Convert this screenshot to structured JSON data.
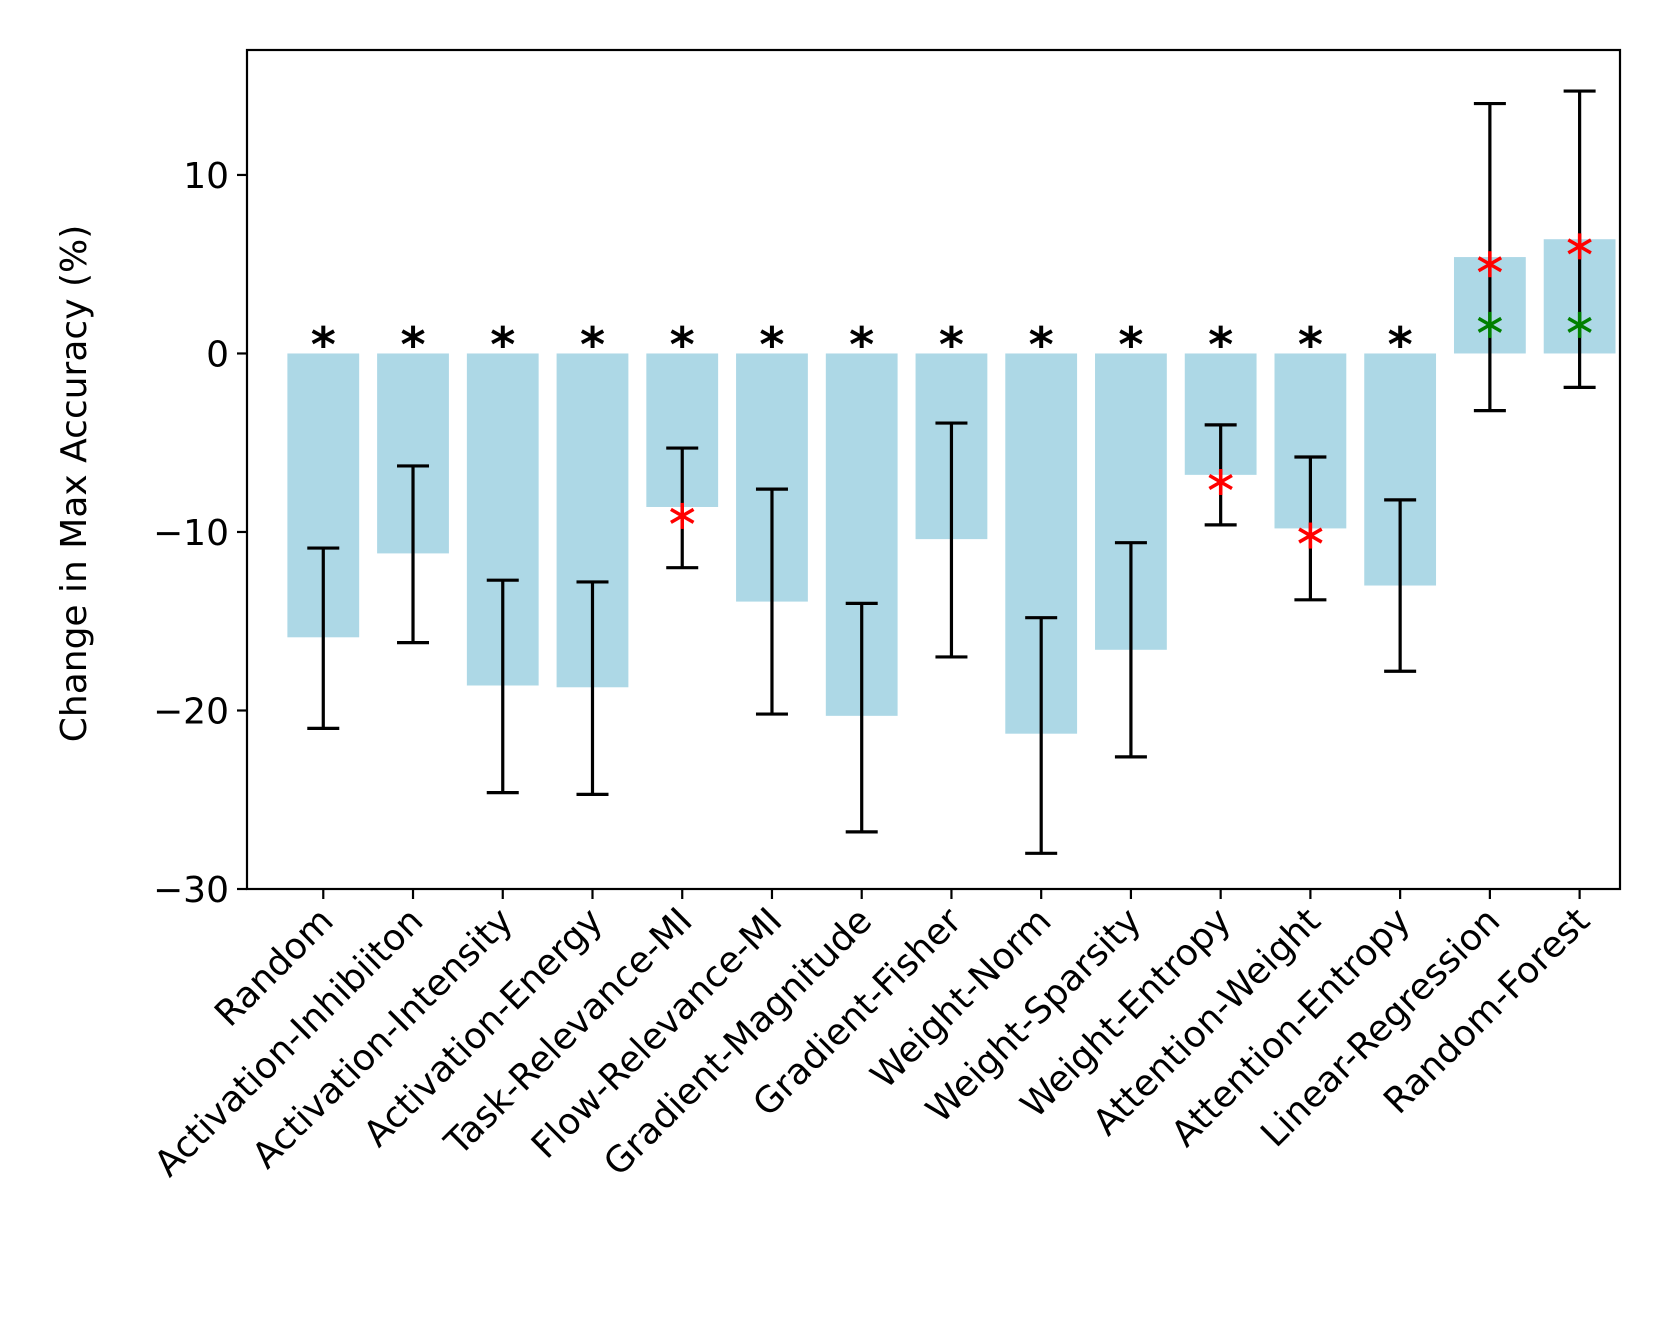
{
  "chart_data": {
    "type": "bar",
    "title": "",
    "xlabel": "",
    "ylabel": "Change in Max Accuracy (%)",
    "ylim": [
      -30,
      17
    ],
    "yticks": [
      10,
      0,
      -10,
      -20,
      -30
    ],
    "ytick_labels": [
      "10",
      "0",
      "−10",
      "−20",
      "−30"
    ],
    "categories": [
      "Random",
      "Activation-Inhibiiton",
      "Activation-Intensity",
      "Activation-Energy",
      "Task-Relevance-MI",
      "Flow-Relevance-MI",
      "Gradient-Magnitude",
      "Gradient-Fisher",
      "Weight-Norm",
      "Weight-Sparsity",
      "Weight-Entropy",
      "Attention-Weight",
      "Attention-Entropy",
      "Linear-Regression",
      "Random-Forest"
    ],
    "values": [
      -15.9,
      -11.2,
      -18.6,
      -18.7,
      -8.6,
      -13.9,
      -20.3,
      -10.4,
      -21.3,
      -16.6,
      -6.8,
      -9.8,
      -13.0,
      5.4,
      6.4
    ],
    "error_low": [
      -21.0,
      -16.2,
      -24.6,
      -24.7,
      -12.0,
      -20.2,
      -26.8,
      -17.0,
      -28.0,
      -22.6,
      -9.6,
      -13.8,
      -17.8,
      -3.2,
      -1.9
    ],
    "error_high": [
      -10.9,
      -6.3,
      -12.7,
      -12.8,
      -5.3,
      -7.6,
      -14.0,
      -3.9,
      -14.8,
      -10.6,
      -4.0,
      -5.8,
      -8.2,
      14.0,
      14.7
    ],
    "significance_marks": [
      {
        "category": "Random",
        "symbol": "*"
      },
      {
        "category": "Activation-Inhibiiton",
        "symbol": "*"
      },
      {
        "category": "Activation-Intensity",
        "symbol": "*"
      },
      {
        "category": "Activation-Energy",
        "symbol": "*"
      },
      {
        "category": "Task-Relevance-MI",
        "symbol": "*"
      },
      {
        "category": "Flow-Relevance-MI",
        "symbol": "*"
      },
      {
        "category": "Gradient-Magnitude",
        "symbol": "*"
      },
      {
        "category": "Gradient-Fisher",
        "symbol": "*"
      },
      {
        "category": "Weight-Norm",
        "symbol": "*"
      },
      {
        "category": "Weight-Sparsity",
        "symbol": "*"
      },
      {
        "category": "Weight-Entropy",
        "symbol": "*"
      },
      {
        "category": "Attention-Weight",
        "symbol": "*"
      },
      {
        "category": "Attention-Entropy",
        "symbol": "*"
      }
    ],
    "red_markers": [
      {
        "category": "Task-Relevance-MI",
        "y": -9.1
      },
      {
        "category": "Weight-Entropy",
        "y": -7.2
      },
      {
        "category": "Attention-Weight",
        "y": -10.2
      },
      {
        "category": "Linear-Regression",
        "y": 5.0
      },
      {
        "category": "Random-Forest",
        "y": 6.0
      }
    ],
    "green_markers": [
      {
        "category": "Linear-Regression",
        "y": 1.6
      },
      {
        "category": "Random-Forest",
        "y": 1.6
      }
    ],
    "colors": {
      "bar": "#add8e6",
      "error": "#000000",
      "red_marker": "#ff0000",
      "green_marker": "#008000",
      "axis": "#000000"
    }
  }
}
